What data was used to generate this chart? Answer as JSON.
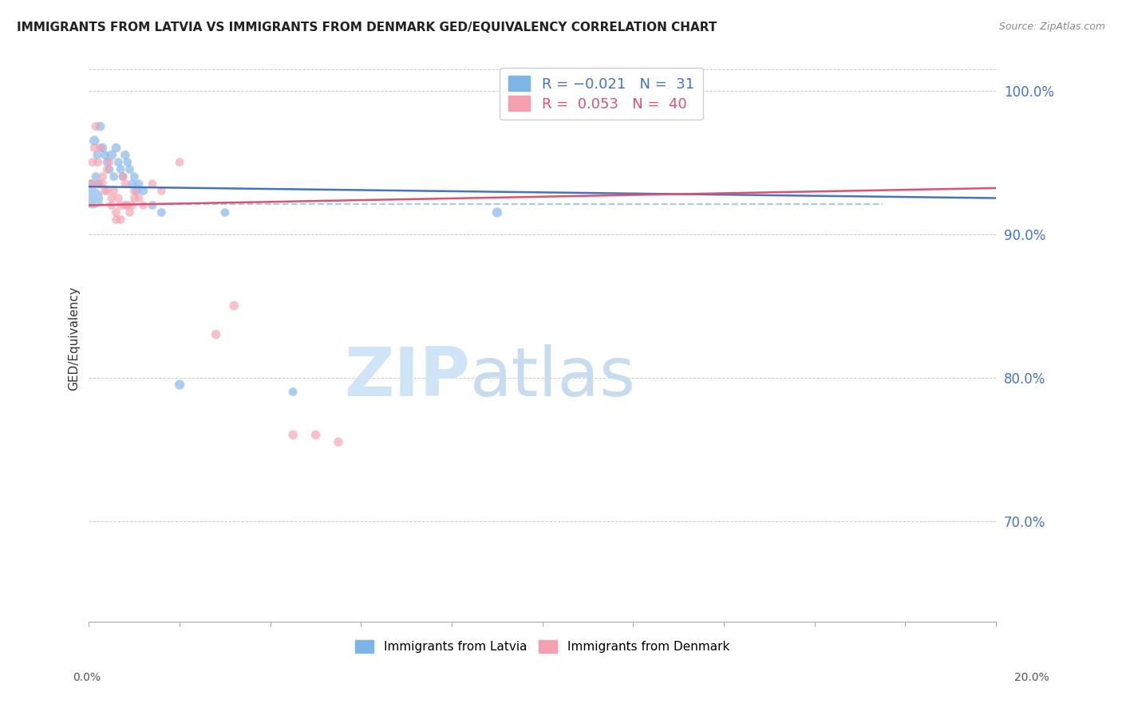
{
  "title": "IMMIGRANTS FROM LATVIA VS IMMIGRANTS FROM DENMARK GED/EQUIVALENCY CORRELATION CHART",
  "source": "Source: ZipAtlas.com",
  "ylabel": "GED/Equivalency",
  "right_yticks": [
    70.0,
    80.0,
    90.0,
    100.0
  ],
  "legend_label_latvia": "Immigrants from Latvia",
  "legend_label_denmark": "Immigrants from Denmark",
  "xmin": 0.0,
  "xmax": 20.0,
  "ymin": 63.0,
  "ymax": 102.5,
  "latvia_x": [
    0.05,
    0.12,
    0.18,
    0.25,
    0.3,
    0.35,
    0.4,
    0.45,
    0.5,
    0.55,
    0.6,
    0.65,
    0.7,
    0.75,
    0.8,
    0.85,
    0.9,
    0.95,
    1.0,
    1.05,
    1.1,
    1.2,
    1.4,
    1.6,
    2.0,
    3.0,
    4.5,
    9.0,
    0.08,
    0.15,
    0.22
  ],
  "latvia_y": [
    93.5,
    96.5,
    95.5,
    97.5,
    96.0,
    95.5,
    95.0,
    94.5,
    95.5,
    94.0,
    96.0,
    95.0,
    94.5,
    94.0,
    95.5,
    95.0,
    94.5,
    93.5,
    94.0,
    93.0,
    93.5,
    93.0,
    92.0,
    91.5,
    79.5,
    91.5,
    79.0,
    91.5,
    92.5,
    94.0,
    93.5
  ],
  "latvia_sizes": [
    60,
    80,
    60,
    70,
    70,
    60,
    60,
    60,
    80,
    60,
    70,
    60,
    60,
    60,
    70,
    60,
    60,
    60,
    60,
    60,
    60,
    60,
    60,
    60,
    80,
    60,
    60,
    80,
    350,
    60,
    60
  ],
  "denmark_x": [
    0.05,
    0.08,
    0.12,
    0.15,
    0.18,
    0.2,
    0.25,
    0.3,
    0.35,
    0.4,
    0.45,
    0.5,
    0.55,
    0.6,
    0.65,
    0.7,
    0.75,
    0.8,
    0.85,
    0.9,
    0.95,
    1.0,
    1.1,
    1.2,
    1.4,
    1.6,
    2.0,
    2.8,
    3.2,
    5.0,
    5.5,
    4.5,
    0.3,
    0.4,
    0.5,
    0.6,
    0.7,
    0.8,
    1.0,
    12.5
  ],
  "denmark_y": [
    93.5,
    95.0,
    96.0,
    97.5,
    93.5,
    95.0,
    96.0,
    93.5,
    93.0,
    94.5,
    95.0,
    92.5,
    93.0,
    91.0,
    92.5,
    92.0,
    94.0,
    93.5,
    92.0,
    91.5,
    92.0,
    93.0,
    92.5,
    92.0,
    93.5,
    93.0,
    95.0,
    83.0,
    85.0,
    76.0,
    75.5,
    76.0,
    94.0,
    93.0,
    92.0,
    91.5,
    91.0,
    92.0,
    92.5,
    100.5
  ],
  "denmark_sizes": [
    60,
    60,
    60,
    60,
    60,
    60,
    60,
    60,
    60,
    60,
    60,
    60,
    60,
    60,
    60,
    60,
    60,
    60,
    60,
    60,
    60,
    60,
    60,
    60,
    60,
    60,
    60,
    70,
    70,
    70,
    70,
    70,
    60,
    60,
    60,
    60,
    60,
    60,
    60,
    100
  ],
  "latvia_color": "#7EB5E8",
  "denmark_color": "#F4A0B0",
  "trend_latvia_color": "#4472C4",
  "trend_denmark_color": "#E05070",
  "trend_dashed_color": "#A8C8E8",
  "watermark_zip": "ZIP",
  "watermark_atlas": "atlas",
  "watermark_color": "#D0E4F7",
  "lv_trend_y0": 93.3,
  "lv_trend_y1": 92.5,
  "dk_trend_y0": 92.0,
  "dk_trend_y1": 93.2,
  "dash_y": 92.1,
  "dash_xstart": 0.0,
  "dash_xend": 17.5
}
